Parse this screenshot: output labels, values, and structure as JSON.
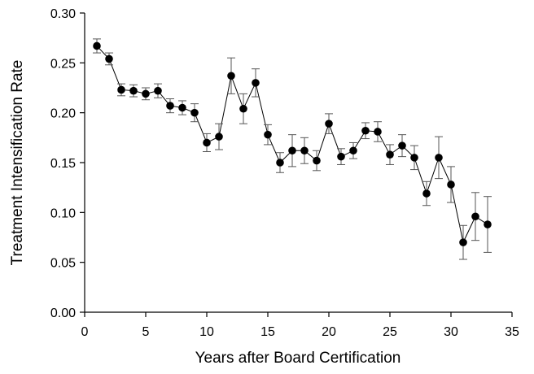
{
  "chart_data": {
    "type": "scatter",
    "title": "",
    "xlabel": "Years after Board Certification",
    "ylabel": "Treatment Intensification Rate",
    "xlim": [
      0,
      35
    ],
    "ylim": [
      0,
      0.3
    ],
    "xticks": [
      "0",
      "5",
      "10",
      "15",
      "20",
      "25",
      "30",
      "35"
    ],
    "yticks": [
      "0.00",
      "0.05",
      "0.10",
      "0.15",
      "0.20",
      "0.25",
      "0.30"
    ],
    "grid": false,
    "legend": "none",
    "marker_color": "#000000",
    "line_color": "#000000",
    "errorbar_color": "#555555",
    "series": [
      {
        "x": [
          1,
          2,
          3,
          4,
          5,
          6,
          7,
          8,
          9,
          10,
          11,
          12,
          13,
          14,
          15,
          16,
          17,
          18,
          19,
          20,
          21,
          22,
          23,
          24,
          25,
          26,
          27,
          28,
          29,
          30,
          31,
          32,
          33
        ],
        "y": [
          0.267,
          0.254,
          0.223,
          0.222,
          0.219,
          0.222,
          0.207,
          0.205,
          0.2,
          0.17,
          0.176,
          0.237,
          0.204,
          0.23,
          0.178,
          0.15,
          0.162,
          0.162,
          0.152,
          0.189,
          0.156,
          0.162,
          0.182,
          0.181,
          0.158,
          0.167,
          0.155,
          0.119,
          0.155,
          0.128,
          0.07,
          0.096,
          0.088
        ],
        "err": [
          0.007,
          0.006,
          0.006,
          0.006,
          0.006,
          0.007,
          0.007,
          0.007,
          0.009,
          0.009,
          0.013,
          0.018,
          0.015,
          0.014,
          0.01,
          0.01,
          0.016,
          0.013,
          0.01,
          0.01,
          0.008,
          0.008,
          0.008,
          0.01,
          0.01,
          0.011,
          0.012,
          0.012,
          0.021,
          0.018,
          0.017,
          0.024,
          0.028
        ]
      }
    ]
  }
}
